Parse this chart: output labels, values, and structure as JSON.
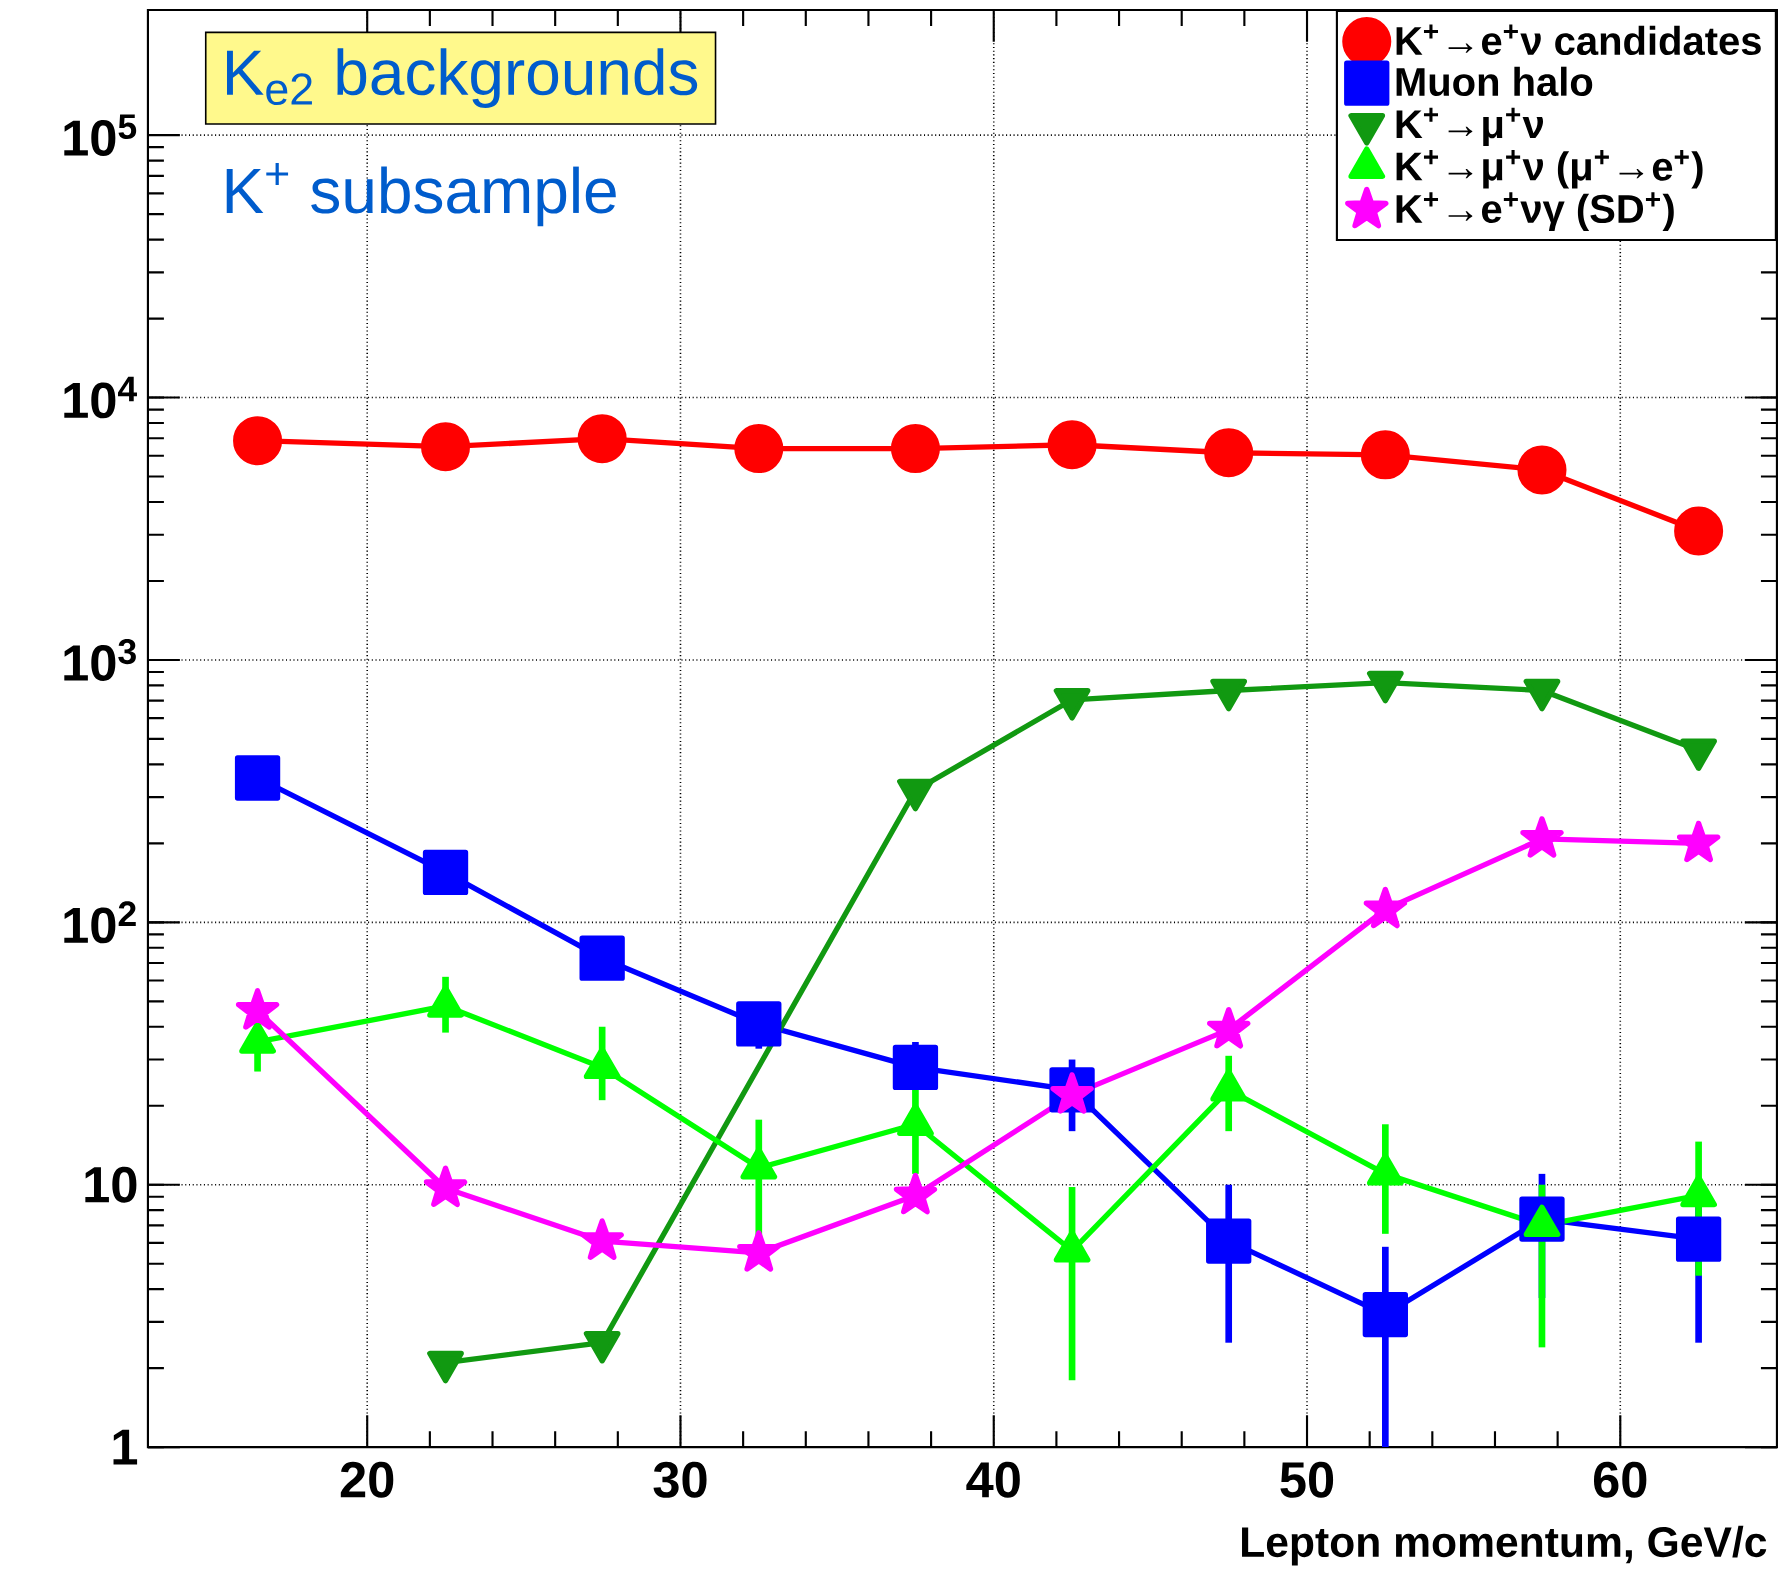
{
  "chart_data": {
    "type": "line",
    "title": "K$_{e2}$ backgrounds",
    "subtitle": "K$^{+}$ subsample",
    "xlabel": "Lepton momentum, GeV/c",
    "x": [
      16.5,
      22.5,
      27.5,
      32.5,
      37.5,
      42.5,
      47.5,
      52.5,
      57.5,
      62.5
    ],
    "xlim": [
      13,
      65
    ],
    "xticks": [
      20,
      30,
      40,
      50,
      60
    ],
    "ylim": [
      1,
      300000
    ],
    "log": "y",
    "grid": true,
    "legend": "top right",
    "yticks": [
      1,
      10,
      {
        "value": 100,
        "label": "10$^{2}$"
      },
      {
        "value": 1000,
        "label": "10$^{3}$"
      },
      {
        "value": 10000,
        "label": "10$^{4}$"
      },
      {
        "value": 100000,
        "label": "10$^{5}$"
      }
    ],
    "series": [
      {
        "name": "K$^{+}$→e$^{+}$ν candidates",
        "color": "#ff0000",
        "marker": "circle",
        "values": [
          6850,
          6500,
          6970,
          6390,
          6390,
          6610,
          6160,
          6050,
          5300,
          3100
        ]
      },
      {
        "name": "Muon halo",
        "color": "#0000ff",
        "marker": "square",
        "values": [
          355,
          155,
          73,
          41,
          28,
          23,
          6.1,
          3.2,
          7.4,
          6.2
        ],
        "errors": [
          null,
          null,
          null,
          [
            33,
            48
          ],
          [
            23,
            35
          ],
          [
            16,
            30
          ],
          [
            2.5,
            10
          ],
          [
            1,
            5.8
          ],
          [
            3.7,
            11
          ],
          [
            2.5,
            10
          ]
        ]
      },
      {
        "name": "K$^{+}$→μ$^{+}$ν",
        "color": "#119911",
        "marker": "triangle down",
        "values": [
          null,
          2.1,
          2.5,
          null,
          318,
          705,
          765,
          820,
          765,
          453
        ]
      },
      {
        "name": "K$^{+}$→μ$^{+}$ν (μ$^{+}$→e$^{+}$)",
        "color": "#00ff00",
        "marker": "triangle",
        "values": [
          35,
          48,
          28,
          11.6,
          17,
          5.6,
          23,
          11,
          7,
          9.1
        ],
        "errors": [
          [
            27,
            48
          ],
          [
            38,
            62
          ],
          [
            21,
            40
          ],
          [
            6,
            17.7
          ],
          [
            11,
            24
          ],
          [
            1.8,
            9.8
          ],
          [
            16,
            31
          ],
          [
            6.5,
            17
          ],
          [
            2.4,
            10
          ],
          [
            4.5,
            14.6
          ]
        ]
      },
      {
        "name": "K$^{+}$→e$^{+}$νγ (SD$^{+}$)",
        "color": "#ff00ff",
        "marker": "star",
        "values": [
          46,
          9.7,
          6.1,
          5.5,
          9.1,
          22,
          39,
          112,
          208,
          200
        ]
      }
    ]
  }
}
